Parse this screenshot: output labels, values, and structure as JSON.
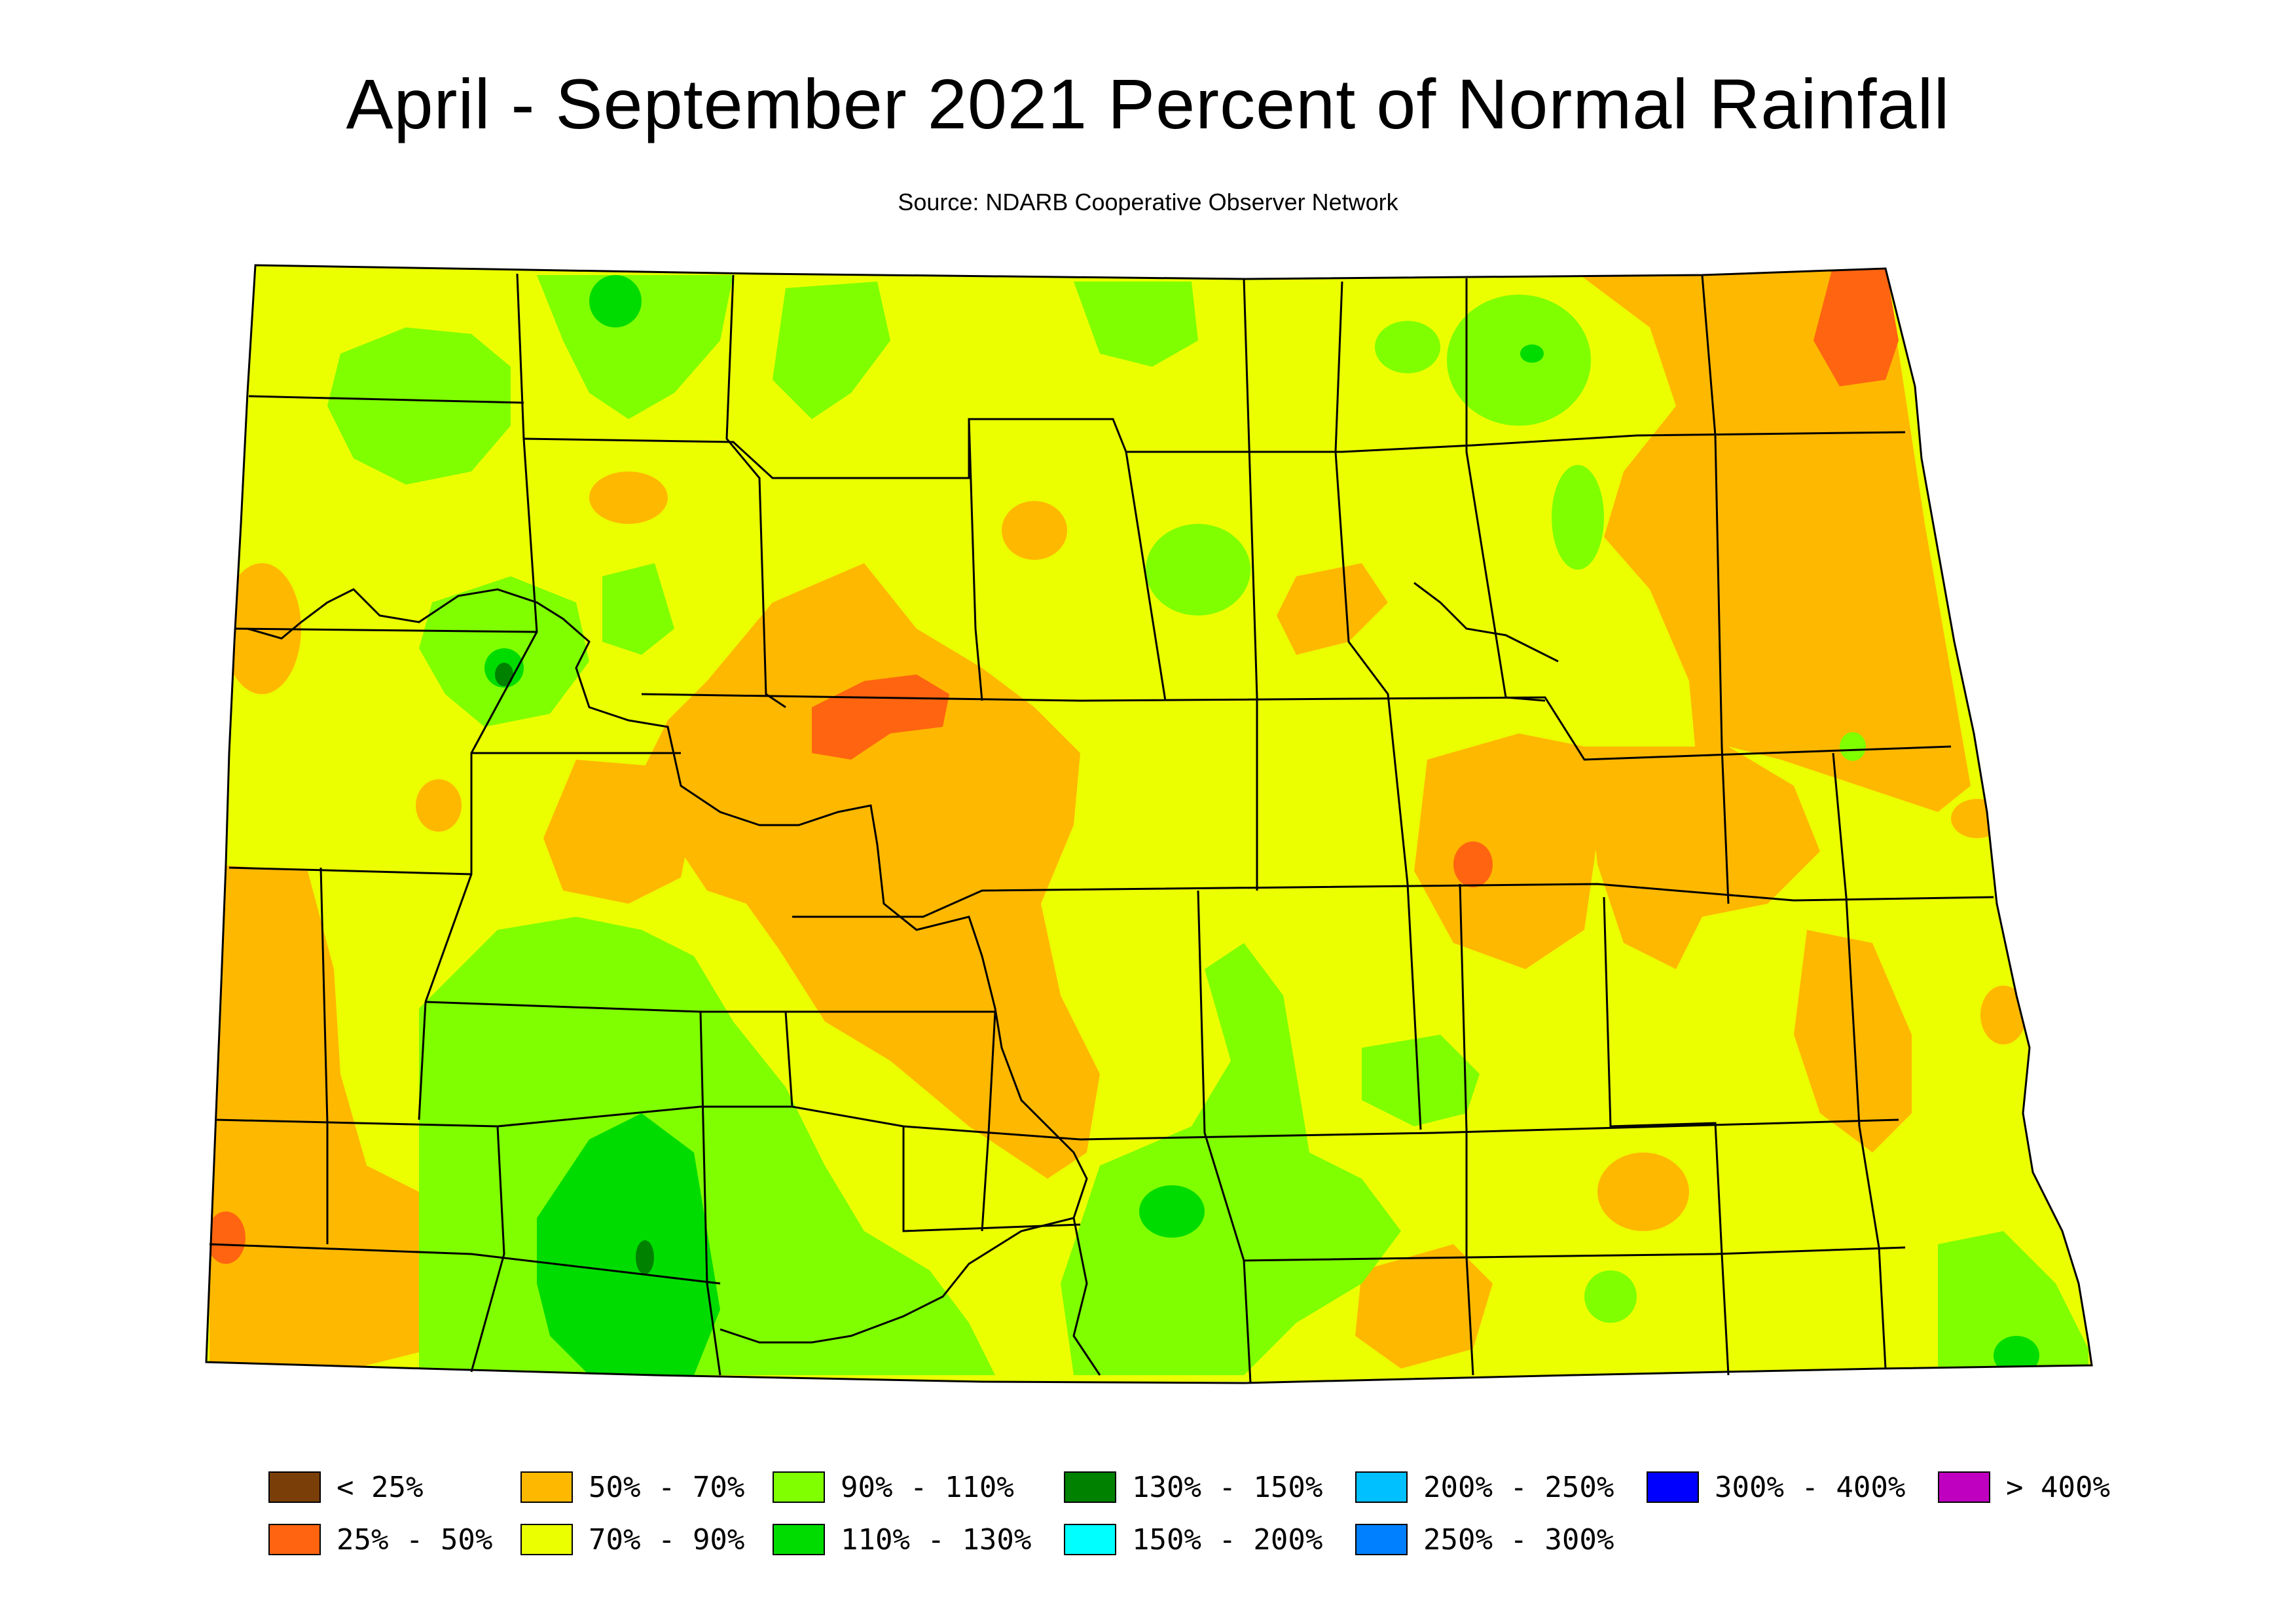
{
  "title": "April - September 2021 Percent of Normal Rainfall",
  "subtitle": "Source: NDARB Cooperative Observer Network",
  "colors": {
    "outline": "#000000",
    "background": "#ffffff"
  },
  "legend": [
    {
      "label": "< 25%",
      "color": "#7a3f08"
    },
    {
      "label": "25% - 50%",
      "color": "#ff6410"
    },
    {
      "label": "50% - 70%",
      "color": "#ffb800"
    },
    {
      "label": "70% - 90%",
      "color": "#ebff00"
    },
    {
      "label": "90% - 110%",
      "color": "#80ff00"
    },
    {
      "label": "110% - 130%",
      "color": "#00dc00"
    },
    {
      "label": "130% - 150%",
      "color": "#008200"
    },
    {
      "label": "150% - 200%",
      "color": "#00ffff"
    },
    {
      "label": "200% - 250%",
      "color": "#00c0ff"
    },
    {
      "label": "250% - 300%",
      "color": "#0080ff"
    },
    {
      "label": "300% - 400%",
      "color": "#0000ff"
    },
    {
      "label": "> 400%",
      "color": "#c000c0"
    }
  ]
}
